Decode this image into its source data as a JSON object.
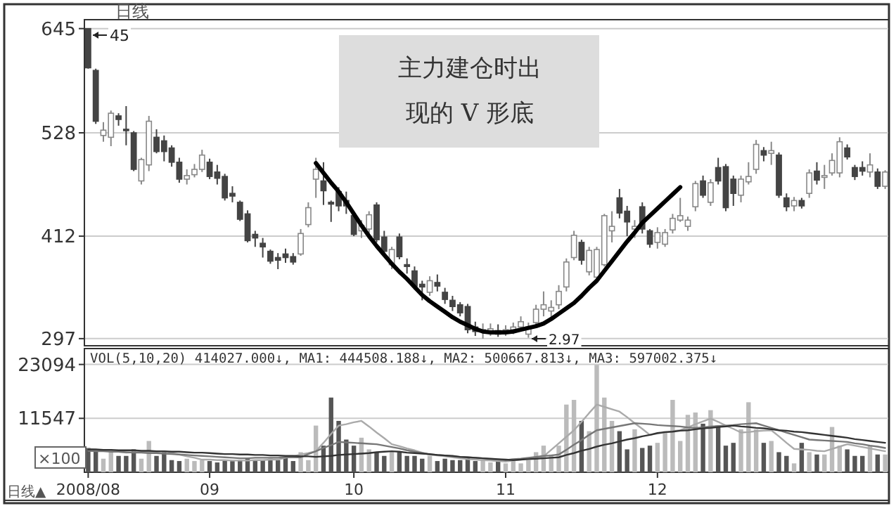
{
  "chart_data": [
    {
      "type": "candlestick",
      "grid": "y",
      "ylim": [
        289,
        655
      ],
      "yticks": [
        645,
        528,
        412,
        297
      ],
      "categories": [
        null,
        null,
        null,
        null,
        null,
        null,
        null,
        null,
        null,
        null,
        null,
        null,
        null,
        null,
        null,
        null,
        null,
        null,
        null,
        null,
        null,
        null,
        null,
        null,
        null,
        null,
        null,
        null,
        null,
        null,
        null,
        null,
        null,
        null,
        null,
        null,
        null,
        null,
        null,
        null,
        null,
        null,
        null,
        null,
        null,
        null,
        null,
        null,
        null,
        null,
        null,
        null,
        null,
        null,
        null,
        null,
        null,
        null,
        null,
        null,
        null,
        null,
        null,
        null,
        null,
        null,
        null,
        null,
        null,
        null,
        null,
        null,
        null,
        null,
        null,
        null,
        null,
        null,
        null,
        null,
        null,
        null,
        null,
        null,
        null,
        null,
        null,
        null,
        null,
        null,
        null,
        null,
        null,
        null,
        null,
        null,
        null,
        null,
        null,
        null,
        null,
        null,
        null,
        null,
        null,
        null
      ],
      "ohlc": [
        [
          645,
          645,
          600,
          601
        ],
        [
          598,
          600,
          538,
          541
        ],
        [
          525,
          540,
          518,
          531
        ],
        [
          523,
          553,
          513,
          550
        ],
        [
          547,
          550,
          536,
          543
        ],
        [
          532,
          558,
          514,
          531
        ],
        [
          528,
          530,
          485,
          487
        ],
        [
          474,
          500,
          470,
          498
        ],
        [
          492,
          547,
          485,
          541
        ],
        [
          523,
          532,
          505,
          507
        ],
        [
          519,
          525,
          496,
          507
        ],
        [
          511,
          514,
          490,
          495
        ],
        [
          495,
          500,
          472,
          476
        ],
        [
          476,
          487,
          470,
          480
        ],
        [
          481,
          493,
          478,
          487
        ],
        [
          487,
          509,
          484,
          503
        ],
        [
          495,
          499,
          476,
          479
        ],
        [
          484,
          492,
          470,
          477
        ],
        [
          479,
          482,
          452,
          455
        ],
        [
          460,
          468,
          450,
          457
        ],
        [
          450,
          452,
          429,
          431
        ],
        [
          437,
          441,
          405,
          407
        ],
        [
          414,
          418,
          400,
          410
        ],
        [
          404,
          410,
          388,
          400
        ],
        [
          395,
          397,
          381,
          384
        ],
        [
          388,
          393,
          375,
          385
        ],
        [
          392,
          398,
          382,
          388
        ],
        [
          389,
          393,
          380,
          383
        ],
        [
          392,
          420,
          390,
          415
        ],
        [
          425,
          450,
          422,
          444
        ],
        [
          476,
          500,
          455,
          487
        ],
        [
          474,
          495,
          447,
          463
        ],
        [
          450,
          452,
          428,
          448
        ],
        [
          462,
          467,
          440,
          446
        ],
        [
          452,
          462,
          437,
          446
        ],
        [
          435,
          440,
          412,
          414
        ],
        [
          418,
          430,
          410,
          424
        ],
        [
          420,
          440,
          415,
          436
        ],
        [
          447,
          450,
          405,
          408
        ],
        [
          411,
          418,
          392,
          395
        ],
        [
          380,
          400,
          375,
          397
        ],
        [
          411,
          415,
          386,
          389
        ],
        [
          380,
          387,
          370,
          378
        ],
        [
          373,
          378,
          352,
          356
        ],
        [
          358,
          362,
          340,
          355
        ],
        [
          349,
          367,
          345,
          362
        ],
        [
          360,
          369,
          350,
          356
        ],
        [
          349,
          354,
          336,
          341
        ],
        [
          340,
          345,
          328,
          333
        ],
        [
          335,
          338,
          322,
          326
        ],
        [
          333,
          336,
          303,
          307
        ],
        [
          310,
          316,
          300,
          305
        ],
        [
          305,
          314,
          297,
          307
        ],
        [
          303,
          314,
          300,
          308
        ],
        [
          306,
          313,
          299,
          302
        ],
        [
          303,
          312,
          300,
          307
        ],
        [
          307,
          315,
          302,
          310
        ],
        [
          310,
          322,
          305,
          316
        ],
        [
          302,
          315,
          298,
          310
        ],
        [
          315,
          335,
          312,
          330
        ],
        [
          330,
          350,
          322,
          335
        ],
        [
          328,
          340,
          320,
          332
        ],
        [
          335,
          357,
          330,
          350
        ],
        [
          355,
          387,
          350,
          383
        ],
        [
          388,
          418,
          385,
          413
        ],
        [
          405,
          408,
          380,
          385
        ],
        [
          372,
          400,
          368,
          396
        ],
        [
          366,
          400,
          362,
          397
        ],
        [
          380,
          437,
          378,
          435
        ],
        [
          418,
          440,
          405,
          423
        ],
        [
          455,
          465,
          432,
          438
        ],
        [
          440,
          446,
          412,
          428
        ],
        [
          420,
          430,
          410,
          423
        ],
        [
          445,
          450,
          415,
          420
        ],
        [
          418,
          420,
          399,
          403
        ],
        [
          405,
          422,
          398,
          416
        ],
        [
          403,
          420,
          400,
          416
        ],
        [
          419,
          437,
          415,
          432
        ],
        [
          430,
          455,
          428,
          435
        ],
        [
          423,
          434,
          418,
          430
        ],
        [
          445,
          474,
          440,
          471
        ],
        [
          474,
          480,
          455,
          458
        ],
        [
          450,
          476,
          446,
          472
        ],
        [
          489,
          500,
          470,
          474
        ],
        [
          490,
          493,
          440,
          444
        ],
        [
          476,
          480,
          446,
          460
        ],
        [
          458,
          480,
          450,
          476
        ],
        [
          473,
          495,
          470,
          479
        ],
        [
          487,
          520,
          482,
          515
        ],
        [
          508,
          512,
          496,
          503
        ],
        [
          505,
          518,
          492,
          508
        ],
        [
          503,
          506,
          455,
          458
        ],
        [
          455,
          460,
          440,
          445
        ],
        [
          446,
          456,
          440,
          452
        ],
        [
          452,
          455,
          443,
          446
        ],
        [
          460,
          487,
          455,
          483
        ],
        [
          485,
          495,
          470,
          475
        ],
        [
          478,
          492,
          465,
          480
        ],
        [
          483,
          505,
          480,
          497
        ],
        [
          483,
          523,
          478,
          518
        ],
        [
          511,
          515,
          498,
          501
        ],
        [
          489,
          492,
          475,
          479
        ],
        [
          489,
          496,
          480,
          485
        ],
        [
          484,
          505,
          478,
          492
        ],
        [
          484,
          488,
          465,
          468
        ],
        [
          468,
          486,
          465,
          484
        ]
      ],
      "series": [
        {
          "type": "line",
          "color": "#000000",
          "values": [
            null,
            null,
            null,
            null,
            null,
            null,
            null,
            null,
            null,
            null,
            null,
            null,
            null,
            null,
            null,
            null,
            null,
            null,
            null,
            null,
            null,
            null,
            null,
            null,
            null,
            null,
            null,
            null,
            null,
            null,
            494,
            483,
            472,
            462,
            450,
            437,
            424,
            412,
            401,
            391,
            381,
            372,
            364,
            355,
            346,
            339,
            333,
            327,
            321,
            316,
            312,
            308,
            305,
            304,
            304,
            304,
            305,
            307,
            309,
            311,
            314,
            319,
            325,
            331,
            337,
            345,
            354,
            362,
            373,
            384,
            395,
            406,
            416,
            427,
            435,
            443,
            451,
            459,
            467,
            null,
            null,
            null,
            null,
            null,
            null,
            null,
            null,
            null,
            null,
            null,
            null,
            null,
            null,
            null,
            null,
            null,
            null,
            null,
            null,
            null,
            null,
            null,
            null,
            null,
            null,
            null
          ]
        }
      ],
      "annotations": [
        "日线",
        "主力建仓时出现的 V 形底",
        "45",
        "2.97"
      ]
    },
    {
      "type": "bar",
      "grid": "y",
      "ylim": [
        0,
        26500
      ],
      "yticks": [
        23094,
        11547
      ],
      "categories": [
        "2008/08",
        null,
        null,
        null,
        null,
        null,
        null,
        null,
        null,
        null,
        null,
        null,
        null,
        null,
        null,
        null,
        "09",
        null,
        null,
        null,
        null,
        null,
        null,
        null,
        null,
        null,
        null,
        null,
        null,
        null,
        null,
        null,
        null,
        null,
        null,
        "10",
        null,
        null,
        null,
        null,
        null,
        null,
        null,
        null,
        null,
        null,
        null,
        null,
        null,
        null,
        null,
        null,
        null,
        null,
        null,
        "11",
        null,
        null,
        null,
        null,
        null,
        null,
        null,
        null,
        null,
        null,
        null,
        null,
        null,
        null,
        null,
        null,
        null,
        null,
        null,
        "12",
        null,
        null,
        null,
        null,
        null,
        null,
        null,
        null,
        null,
        null,
        null,
        null,
        null,
        null,
        null,
        null,
        null,
        null,
        null,
        null,
        null,
        null,
        null,
        null,
        null,
        null,
        null,
        null,
        null,
        null
      ],
      "series": [
        {
          "type": "bar",
          "values": [
            5200,
            4900,
            2900,
            4900,
            3500,
            3500,
            4900,
            2900,
            6700,
            3500,
            4300,
            2600,
            2400,
            2900,
            2400,
            2600,
            2400,
            2100,
            2600,
            2400,
            2600,
            3000,
            2400,
            2600,
            2900,
            2600,
            3000,
            2400,
            4300,
            2600,
            10000,
            5700,
            16000,
            11000,
            7000,
            5700,
            7400,
            4900,
            4300,
            3500,
            4300,
            4300,
            3500,
            3500,
            2900,
            3500,
            2400,
            2900,
            2600,
            2600,
            3000,
            2400,
            2600,
            2100,
            2400,
            1900,
            2900,
            1900,
            2600,
            4300,
            5700,
            3800,
            5700,
            14500,
            15500,
            11000,
            8800,
            23000,
            16000,
            11000,
            8800,
            4900,
            9200,
            5200,
            5700,
            6300,
            8800,
            15500,
            6700,
            12300,
            12800,
            10400,
            13300,
            9700,
            5700,
            6300,
            9200,
            15000,
            9200,
            6300,
            6700,
            4300,
            3500,
            1900,
            6300,
            4300,
            3800,
            3800,
            9700,
            5700,
            4900,
            3500,
            3500,
            5700,
            3800,
            3800
          ],
          "colors": [
            "#555555",
            "#555555",
            "#bbbbbb",
            "#bbbbbb",
            "#555555",
            "#555555",
            "#555555",
            "#bbbbbb",
            "#bbbbbb",
            "#555555",
            "#555555",
            "#555555",
            "#555555",
            "#bbbbbb",
            "#bbbbbb",
            "#bbbbbb",
            "#555555",
            "#555555",
            "#555555",
            "#555555",
            "#555555",
            "#555555",
            "#555555",
            "#555555",
            "#555555",
            "#555555",
            "#555555",
            "#555555",
            "#bbbbbb",
            "#bbbbbb",
            "#bbbbbb",
            "#555555",
            "#555555",
            "#555555",
            "#555555",
            "#555555",
            "#bbbbbb",
            "#bbbbbb",
            "#555555",
            "#555555",
            "#bbbbbb",
            "#555555",
            "#555555",
            "#555555",
            "#555555",
            "#bbbbbb",
            "#555555",
            "#555555",
            "#555555",
            "#555555",
            "#555555",
            "#555555",
            "#bbbbbb",
            "#bbbbbb",
            "#555555",
            "#bbbbbb",
            "#bbbbbb",
            "#bbbbbb",
            "#bbbbbb",
            "#bbbbbb",
            "#bbbbbb",
            "#bbbbbb",
            "#bbbbbb",
            "#bbbbbb",
            "#bbbbbb",
            "#555555",
            "#bbbbbb",
            "#bbbbbb",
            "#bbbbbb",
            "#bbbbbb",
            "#555555",
            "#555555",
            "#bbbbbb",
            "#555555",
            "#555555",
            "#bbbbbb",
            "#bbbbbb",
            "#bbbbbb",
            "#bbbbbb",
            "#bbbbbb",
            "#bbbbbb",
            "#555555",
            "#bbbbbb",
            "#555555",
            "#555555",
            "#555555",
            "#bbbbbb",
            "#bbbbbb",
            "#bbbbbb",
            "#555555",
            "#bbbbbb",
            "#555555",
            "#555555",
            "#bbbbbb",
            "#555555",
            "#bbbbbb",
            "#555555",
            "#bbbbbb",
            "#bbbbbb",
            "#bbbbbb",
            "#555555",
            "#555555",
            "#555555",
            "#bbbbbb",
            "#555555",
            "#bbbbbb"
          ]
        },
        {
          "type": "line",
          "color": "#aaaaaa",
          "values": [
            5000,
            4800,
            4700,
            4500,
            4400,
            4200,
            4300,
            4300,
            4400,
            4400,
            4500,
            4100,
            3800,
            3400,
            3100,
            2700,
            2700,
            2600,
            2600,
            2500,
            2500,
            2500,
            2600,
            2600,
            2700,
            2700,
            3100,
            3400,
            3800,
            4100,
            4500,
            6300,
            8200,
            10000,
            10300,
            10700,
            11000,
            9800,
            8500,
            7300,
            6000,
            5600,
            5100,
            4700,
            4200,
            3800,
            3600,
            3400,
            3200,
            3000,
            2800,
            2700,
            2600,
            2500,
            2400,
            2300,
            2500,
            2700,
            3000,
            3200,
            3400,
            4800,
            6200,
            7600,
            9000,
            10800,
            12700,
            14500,
            14000,
            13500,
            13000,
            11800,
            10500,
            9300,
            8000,
            8300,
            8500,
            8800,
            9000,
            9600,
            10300,
            10900,
            11500,
            10800,
            10000,
            9300,
            8500,
            8600,
            8800,
            8900,
            9000,
            7700,
            6300,
            5000,
            4900,
            4800,
            4600,
            4500,
            5000,
            5500,
            6000,
            5700,
            5400,
            5100,
            4800,
            4500
          ]
        },
        {
          "type": "line",
          "color": "#777777",
          "values": [
            4600,
            4500,
            4500,
            4400,
            4400,
            4300,
            4200,
            4200,
            4100,
            4100,
            4000,
            3900,
            3800,
            3700,
            3600,
            3500,
            3400,
            3300,
            3200,
            3100,
            3000,
            3000,
            3100,
            3100,
            3100,
            3100,
            3200,
            3200,
            3200,
            3900,
            4500,
            5200,
            5800,
            6500,
            6400,
            6300,
            6200,
            6100,
            6000,
            5700,
            5400,
            5100,
            4700,
            4400,
            4100,
            3800,
            3700,
            3600,
            3400,
            3300,
            3200,
            3100,
            3000,
            2800,
            2700,
            2600,
            2800,
            2900,
            3100,
            3300,
            3500,
            3600,
            3800,
            4800,
            5900,
            6900,
            8000,
            9000,
            9300,
            9600,
            9900,
            10200,
            10500,
            10400,
            10300,
            10100,
            10000,
            9900,
            9800,
            9600,
            9500,
            9600,
            9800,
            9900,
            10000,
            10100,
            10300,
            10400,
            10500,
            10000,
            9500,
            9000,
            8500,
            8000,
            7500,
            7000,
            6900,
            6800,
            6700,
            6600,
            6500,
            6200,
            6000,
            5700,
            5500,
            5200
          ]
        },
        {
          "type": "line",
          "color": "#333333",
          "values": [
            4900,
            4900,
            4800,
            4800,
            4700,
            4700,
            4700,
            4600,
            4600,
            4500,
            4500,
            4400,
            4400,
            4300,
            4200,
            4200,
            4100,
            4000,
            3900,
            3900,
            3800,
            3800,
            3700,
            3700,
            3600,
            3600,
            3500,
            3500,
            3400,
            3400,
            3300,
            3400,
            3500,
            3700,
            3800,
            3900,
            4000,
            4100,
            4300,
            4400,
            4500,
            4400,
            4200,
            4100,
            4000,
            3900,
            3700,
            3600,
            3500,
            3300,
            3200,
            3100,
            3000,
            2900,
            2800,
            2700,
            2600,
            2700,
            2800,
            2900,
            3000,
            3100,
            3200,
            3700,
            4100,
            4600,
            5000,
            5500,
            5900,
            6200,
            6600,
            7000,
            7300,
            7700,
            8000,
            8400,
            8600,
            8700,
            8900,
            9000,
            9200,
            9400,
            9500,
            9700,
            9800,
            10000,
            9800,
            9700,
            9500,
            9400,
            9200,
            9000,
            8900,
            8700,
            8600,
            8400,
            8200,
            8000,
            7800,
            7600,
            7400,
            7100,
            6900,
            6700,
            6500,
            6300
          ]
        }
      ],
      "annotations": [
        "VOL(5,10,20) 414027.000↓, MA1: 444508.188↓, MA2: 500667.813↓, MA3: 597002.375↓",
        "×100",
        "日线▲"
      ]
    }
  ]
}
